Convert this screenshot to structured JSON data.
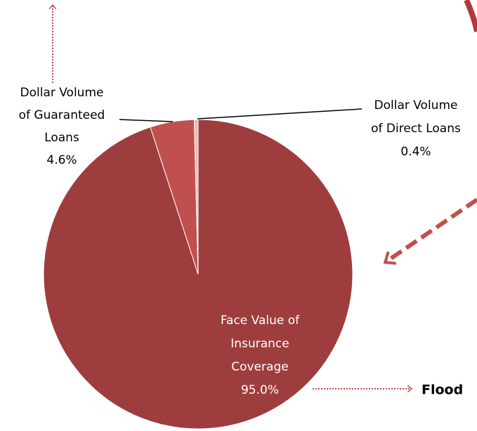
{
  "chart_data": {
    "type": "pie",
    "labels": [
      [
        "Face Value of",
        "Insurance",
        "Coverage"
      ],
      [
        "Dollar Volume",
        "of Guaranteed",
        "Loans"
      ],
      [
        "Dollar Volume",
        "of Direct Loans"
      ]
    ],
    "values": [
      95.0,
      4.6,
      0.4
    ],
    "value_labels": [
      "95.0%",
      "4.6%",
      "0.4%"
    ],
    "colors": [
      "#9e3d3d",
      "#c0504d",
      "#e6b9b8"
    ],
    "annotation": "Flood"
  }
}
